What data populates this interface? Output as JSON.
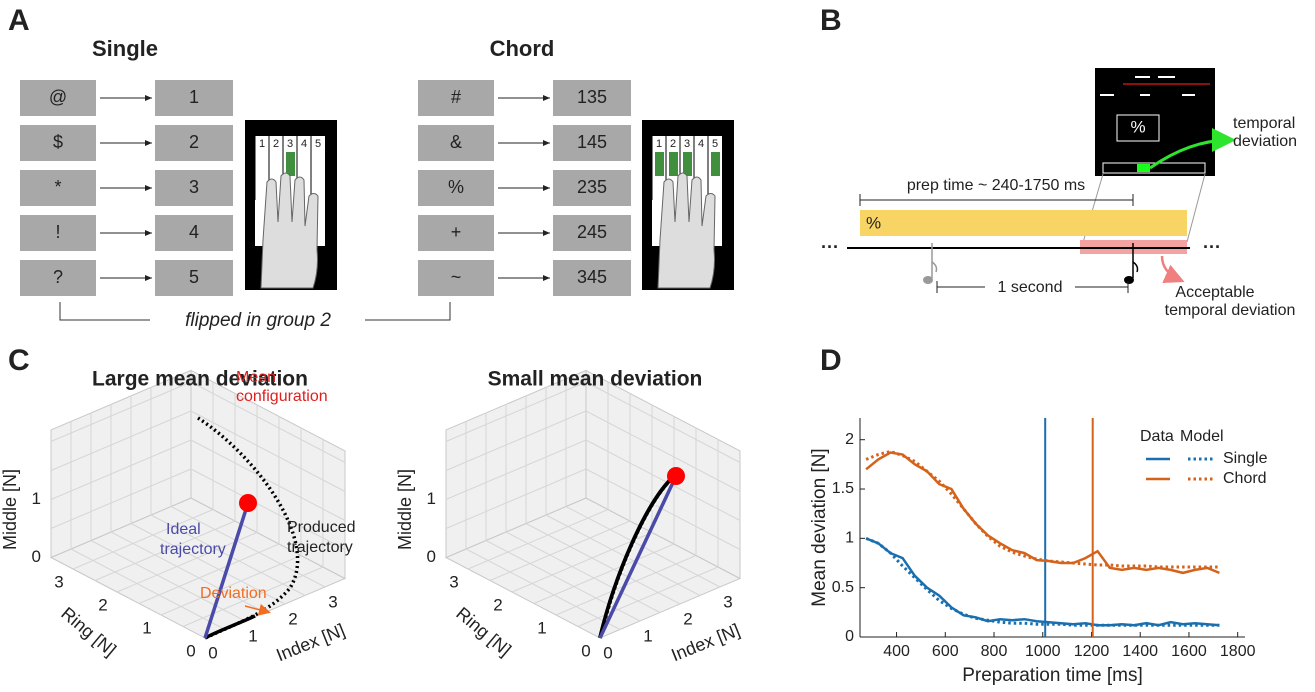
{
  "panel_a": {
    "label": "A",
    "single": {
      "title": "Single",
      "keys": [
        "@",
        "$",
        "*",
        "!",
        "?"
      ],
      "targets": [
        "1",
        "2",
        "3",
        "4",
        "5"
      ]
    },
    "chord": {
      "title": "Chord",
      "keys": [
        "#",
        "&",
        "%",
        "+",
        "~"
      ],
      "targets": [
        "135",
        "145",
        "235",
        "245",
        "345"
      ]
    },
    "hand_keys": [
      "1",
      "2",
      "3",
      "4",
      "5"
    ],
    "note": "flipped in group 2"
  },
  "panel_b": {
    "label": "B",
    "screen_symbol": "%",
    "cue_symbol": "%",
    "prep_label": "prep time ~ 240-1750 ms",
    "interval_label": "1 second",
    "temporal_label": [
      "temporal",
      "deviation"
    ],
    "acceptable_label": [
      "Acceptable",
      "temporal deviation"
    ],
    "ellipsis": "···"
  },
  "panel_c": {
    "label": "C",
    "plots": [
      {
        "title": "Large mean deviation",
        "z_label": "Middle [N]",
        "ring_label": "Ring [N]",
        "index_label": "Index [N]",
        "z_ticks": [
          0,
          1
        ],
        "ring_ticks": [
          0,
          1,
          2,
          3
        ],
        "index_ticks": [
          0,
          1,
          2,
          3
        ],
        "annotations": {
          "mean": [
            "Mean",
            "configuration"
          ],
          "ideal": [
            "Ideal",
            "trajectory"
          ],
          "produced": [
            "Produced",
            "trajectory"
          ],
          "deviation": "Deviation"
        }
      },
      {
        "title": "Small mean deviation",
        "z_label": "Middle [N]",
        "ring_label": "Ring [N]",
        "index_label": "Index [N]",
        "z_ticks": [
          0,
          1
        ],
        "ring_ticks": [
          0,
          1,
          2,
          3
        ],
        "index_ticks": [
          0,
          1,
          2,
          3
        ]
      }
    ]
  },
  "chart_data": {
    "type": "line",
    "panel_label": "D",
    "x_label": "Preparation time [ms]",
    "y_label": "Mean deviation [N]",
    "legend_headers": [
      "Data",
      "Model"
    ],
    "x": [
      275,
      325,
      375,
      425,
      475,
      525,
      575,
      625,
      675,
      725,
      775,
      825,
      875,
      925,
      975,
      1025,
      1075,
      1125,
      1175,
      1225,
      1275,
      1325,
      1375,
      1425,
      1475,
      1525,
      1575,
      1625,
      1675,
      1725
    ],
    "series": [
      {
        "name": "Single",
        "color": "#1a6fae",
        "vline": 1010,
        "values": [
          1.0,
          0.95,
          0.85,
          0.8,
          0.62,
          0.5,
          0.42,
          0.3,
          0.22,
          0.2,
          0.16,
          0.18,
          0.17,
          0.18,
          0.16,
          0.15,
          0.14,
          0.13,
          0.14,
          0.12,
          0.12,
          0.13,
          0.12,
          0.14,
          0.12,
          0.15,
          0.13,
          0.14,
          0.13,
          0.12
        ],
        "model_values": [
          1.0,
          0.95,
          0.85,
          0.72,
          0.6,
          0.48,
          0.37,
          0.29,
          0.23,
          0.19,
          0.17,
          0.15,
          0.14,
          0.14,
          0.13,
          0.13,
          0.13,
          0.12,
          0.12,
          0.12,
          0.12,
          0.12,
          0.12,
          0.12,
          0.12,
          0.12,
          0.12,
          0.12,
          0.12,
          0.12
        ]
      },
      {
        "name": "Chord",
        "color": "#d5621b",
        "vline": 1205,
        "values": [
          1.7,
          1.8,
          1.87,
          1.85,
          1.75,
          1.68,
          1.55,
          1.5,
          1.3,
          1.15,
          1.03,
          0.95,
          0.88,
          0.85,
          0.78,
          0.77,
          0.75,
          0.75,
          0.8,
          0.87,
          0.7,
          0.68,
          0.7,
          0.68,
          0.7,
          0.68,
          0.65,
          0.68,
          0.7,
          0.65
        ],
        "model_values": [
          1.8,
          1.85,
          1.88,
          1.84,
          1.78,
          1.68,
          1.58,
          1.45,
          1.3,
          1.15,
          1.02,
          0.92,
          0.86,
          0.82,
          0.79,
          0.77,
          0.76,
          0.75,
          0.74,
          0.73,
          0.73,
          0.72,
          0.72,
          0.72,
          0.71,
          0.71,
          0.71,
          0.71,
          0.71,
          0.71
        ]
      }
    ],
    "xlim": [
      250,
      1830
    ],
    "xticks": [
      400,
      600,
      800,
      1000,
      1200,
      1400,
      1600,
      1800
    ],
    "ylim": [
      0,
      2.22
    ],
    "yticks": [
      0,
      0.5,
      1,
      1.5,
      2
    ]
  }
}
